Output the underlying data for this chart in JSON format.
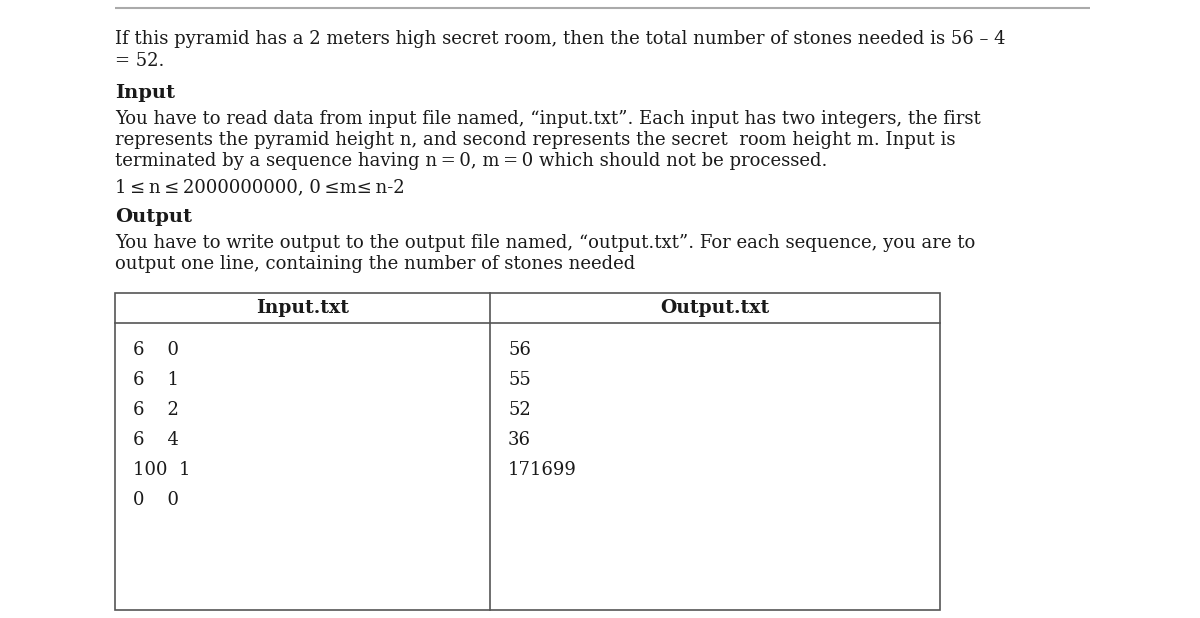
{
  "bg_color": "#ffffff",
  "top_line_color": "#aaaaaa",
  "text_color": "#1a1a1a",
  "table_border_color": "#555555",
  "intro_text_line1": "If this pyramid has a 2 meters high secret room, then the total number of stones needed is 56 – 4",
  "intro_text_line2": "= 52.",
  "input_heading": "Input",
  "input_body_line1": "You have to read data from input file named, “input.txt”. Each input has two integers, the first",
  "input_body_line2": "represents the pyramid height n, and second represents the secret  room height m. Input is",
  "input_body_line3": "terminated by a sequence having n = 0, m = 0 which should not be processed.",
  "constraint_text": "1 ≤ n ≤ 2000000000, 0 ≤m≤ n-2",
  "output_heading": "Output",
  "output_body_line1": "You have to write output to the output file named, “output.txt”. For each sequence, you are to",
  "output_body_line2": "output one line, containing the number of stones needed",
  "table_col1_header": "Input.txt",
  "table_col2_header": "Output.txt",
  "table_col1_data": [
    "6    0",
    "6    1",
    "6    2",
    "6    4",
    "100  1",
    "0    0"
  ],
  "table_col2_data": [
    "56",
    "55",
    "52",
    "36",
    "171699",
    ""
  ],
  "font_size_body": 13.0,
  "font_size_heading": 14.0,
  "font_size_table_header": 13.5,
  "font_size_table_body": 13.0
}
